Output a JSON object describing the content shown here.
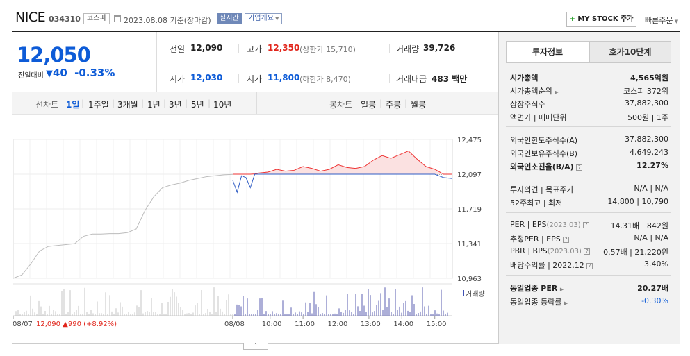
{
  "header": {
    "name": "NICE",
    "code": "034310",
    "market": "코스피",
    "date": "2023.08.08 기준(장마감)",
    "realtime": "실시간",
    "corp_info": "기업개요",
    "mystock": "MY STOCK 추가",
    "quick_order": "빠른주문"
  },
  "price": {
    "current": "12,050",
    "change_label": "전일대비",
    "change": "40",
    "change_pct": "-0.33%",
    "direction": "down"
  },
  "quotes": {
    "prev_label": "전일",
    "prev": "12,090",
    "high_label": "고가",
    "high": "12,350",
    "upper_label": "(상한가 15,710)",
    "volume_label": "거래량",
    "volume": "39,726",
    "open_label": "시가",
    "open": "12,030",
    "low_label": "저가",
    "low": "11,800",
    "lower_label": "(하한가 8,470)",
    "amount_label": "거래대금",
    "amount": "483",
    "amount_unit": "백만"
  },
  "periods": {
    "line_label": "선차트",
    "items": [
      "1일",
      "1주일",
      "3개월",
      "1년",
      "3년",
      "5년",
      "10년"
    ],
    "selected": "1일",
    "candle_label": "봉차트",
    "candles": [
      "일봉",
      "주봉",
      "월봉"
    ]
  },
  "chart_data": {
    "type": "line",
    "y_ticks": [
      "12,475",
      "12,097",
      "11,719",
      "11,341",
      "10,963"
    ],
    "ylim": [
      10963,
      12475
    ],
    "base_price": 12097,
    "x_ticks": [
      "08/07",
      "08/08",
      "10:00",
      "11:00",
      "12:00",
      "13:00",
      "14:00",
      "15:00"
    ],
    "volume_label": "거래량",
    "prev_day_summary": {
      "date": "08/07",
      "price": "12,090",
      "change": "▲990",
      "pct": "(+8.92%)"
    },
    "series": [
      {
        "segment": "prev_day",
        "x": [
          0,
          2,
          4,
          6,
          8,
          10,
          12,
          14,
          16,
          18,
          20,
          22,
          24,
          26,
          28,
          30,
          32,
          34,
          36,
          38,
          40,
          42,
          44,
          46,
          48,
          50
        ],
        "values": [
          10963,
          11000,
          11120,
          11260,
          11310,
          11320,
          11330,
          11340,
          11420,
          11445,
          11445,
          11450,
          11450,
          11460,
          11500,
          11700,
          11850,
          11950,
          11980,
          12000,
          12030,
          12050,
          12070,
          12080,
          12090,
          12095
        ]
      },
      {
        "segment": "today",
        "x": [
          50,
          51,
          52,
          53,
          54,
          55,
          56,
          58,
          60,
          62,
          64,
          66,
          68,
          70,
          72,
          74,
          76,
          78,
          80,
          82,
          84,
          86,
          88,
          90,
          92,
          94,
          96,
          98,
          100
        ],
        "values": [
          12030,
          11900,
          12080,
          12060,
          11950,
          12100,
          12110,
          12120,
          12150,
          12130,
          12140,
          12180,
          12160,
          12130,
          12150,
          12200,
          12170,
          12160,
          12180,
          12250,
          12300,
          12270,
          12310,
          12350,
          12260,
          12180,
          12150,
          12060,
          12050
        ]
      }
    ]
  },
  "info_panel": {
    "tabs": [
      "투자정보",
      "호가10단계"
    ],
    "rows1": [
      {
        "label": "시가총액",
        "value": "4,565억원"
      },
      {
        "label": "시가총액순위",
        "value": "코스피 372위"
      },
      {
        "label": "상장주식수",
        "value": "37,882,300"
      },
      {
        "label": "액면가 | 매매단위",
        "value": "500원 | 1주"
      }
    ],
    "rows2": [
      {
        "label": "외국인한도주식수(A)",
        "value": "37,882,300"
      },
      {
        "label": "외국인보유주식수(B)",
        "value": "4,649,243"
      },
      {
        "label": "외국인소진율(B/A)",
        "value": "12.27%"
      }
    ],
    "rows3": [
      {
        "label": "투자의견 | 목표주가",
        "value": "N/A | N/A"
      },
      {
        "label": "52주최고 | 최저",
        "value": "14,800 | 10,790"
      }
    ],
    "rows4": [
      {
        "label": "PER | EPS",
        "sub": "(2023.03)",
        "value": "14.31배 | 842원"
      },
      {
        "label": "추정PER | EPS",
        "sub": "",
        "value": "N/A | N/A"
      },
      {
        "label": "PBR | BPS",
        "sub": "(2023.03)",
        "value": "0.57배 | 21,220원"
      },
      {
        "label": "배당수익률 | 2022.12",
        "sub": "",
        "value": "3.40%"
      }
    ],
    "rows5": [
      {
        "label": "동일업종 PER",
        "value": "20.27배"
      },
      {
        "label": "동일업종 등락률",
        "value": "-0.30%"
      }
    ]
  }
}
